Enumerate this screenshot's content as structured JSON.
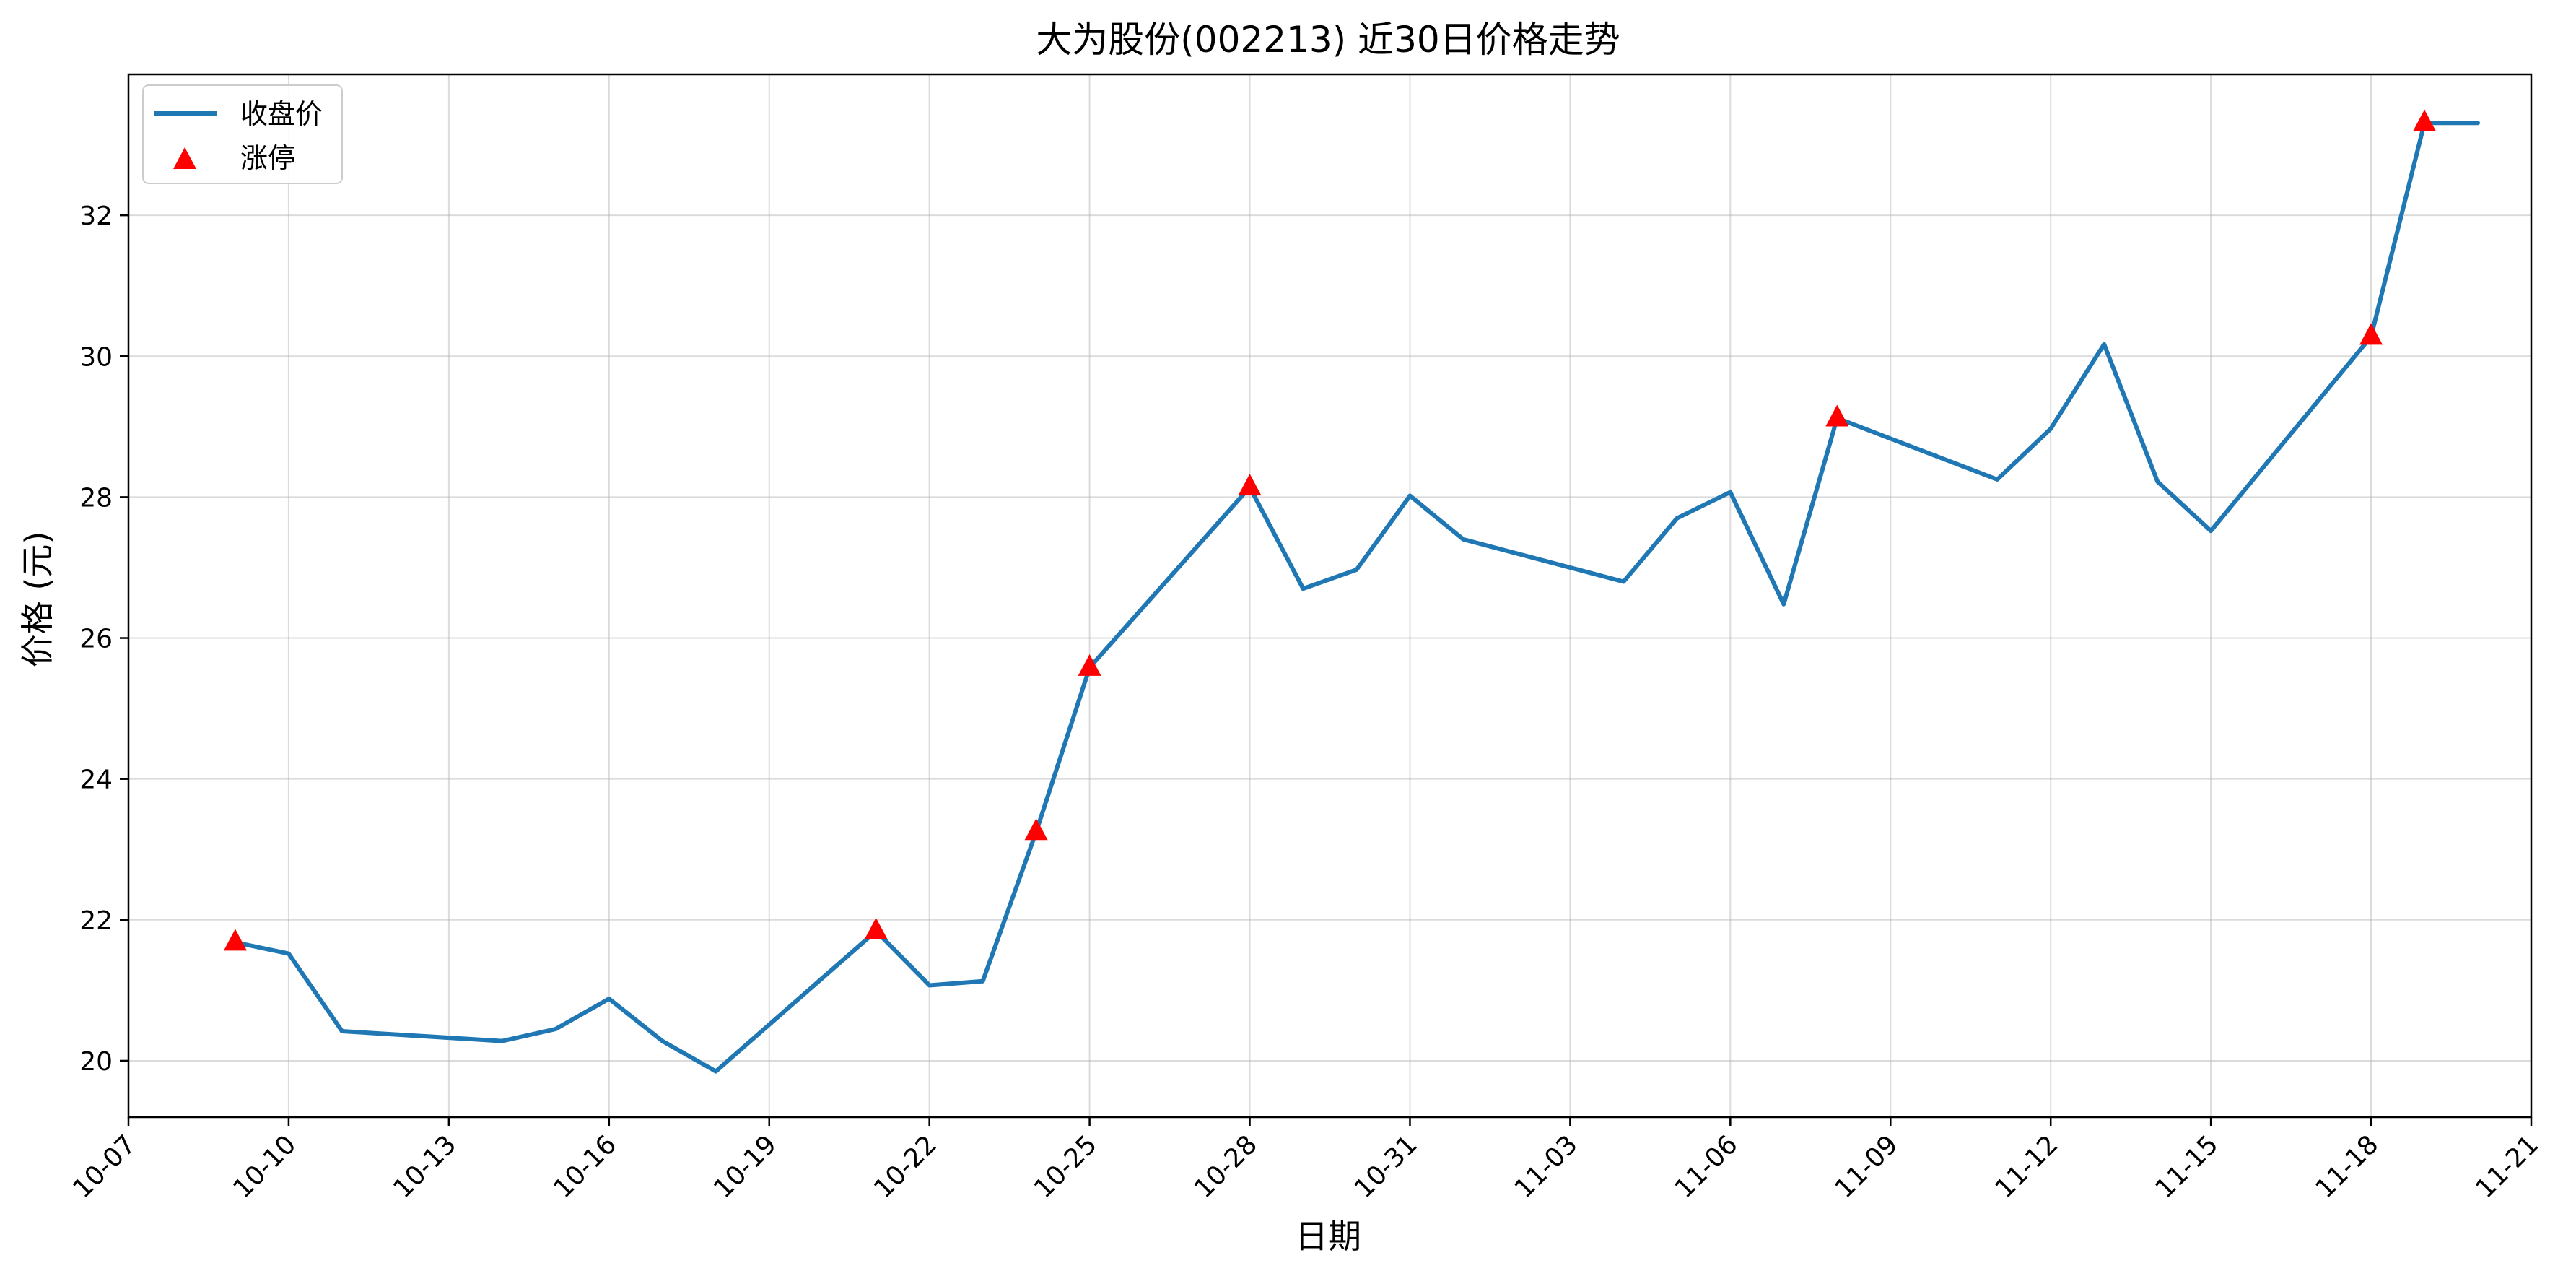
{
  "chart_data": {
    "type": "line",
    "title": "大为股份(002213) 近30日价格走势",
    "xlabel": "日期",
    "ylabel": "价格 (元)",
    "x_tick_labels": [
      "10-07",
      "10-10",
      "10-13",
      "10-16",
      "10-19",
      "10-22",
      "10-25",
      "10-28",
      "10-31",
      "11-03",
      "11-06",
      "11-09",
      "11-12",
      "11-15",
      "11-18",
      "11-21"
    ],
    "x_ticks": [
      "2024-10-07",
      "2024-10-10",
      "2024-10-13",
      "2024-10-16",
      "2024-10-19",
      "2024-10-22",
      "2024-10-25",
      "2024-10-28",
      "2024-10-31",
      "2024-11-03",
      "2024-11-06",
      "2024-11-09",
      "2024-11-12",
      "2024-11-15",
      "2024-11-18",
      "2024-11-21"
    ],
    "y_ticks": [
      20,
      22,
      24,
      26,
      28,
      30,
      32
    ],
    "xlim": [
      "2024-10-07",
      "2024-11-21"
    ],
    "ylim": [
      19.2,
      34.0
    ],
    "grid": true,
    "legend_position": "top-left",
    "series": [
      {
        "name": "收盘价",
        "kind": "line",
        "color": "#1f77b4",
        "x": [
          "2024-10-09",
          "2024-10-10",
          "2024-10-11",
          "2024-10-14",
          "2024-10-15",
          "2024-10-16",
          "2024-10-17",
          "2024-10-18",
          "2024-10-21",
          "2024-10-22",
          "2024-10-23",
          "2024-10-24",
          "2024-10-25",
          "2024-10-28",
          "2024-10-29",
          "2024-10-30",
          "2024-10-31",
          "2024-11-01",
          "2024-11-04",
          "2024-11-05",
          "2024-11-06",
          "2024-11-07",
          "2024-11-08",
          "2024-11-11",
          "2024-11-12",
          "2024-11-13",
          "2024-11-14",
          "2024-11-15",
          "2024-11-18",
          "2024-11-19",
          "2024-11-20"
        ],
        "y": [
          21.68,
          21.52,
          20.42,
          20.28,
          20.45,
          20.88,
          20.28,
          19.85,
          21.84,
          21.07,
          21.13,
          23.25,
          25.58,
          28.14,
          26.7,
          26.97,
          28.02,
          27.4,
          26.8,
          27.7,
          28.07,
          26.48,
          29.12,
          28.25,
          28.97,
          30.17,
          28.22,
          27.52,
          30.28,
          33.31,
          33.31
        ]
      },
      {
        "name": "涨停",
        "kind": "scatter",
        "marker": "triangle",
        "color": "#ff0000",
        "x": [
          "2024-10-09",
          "2024-10-21",
          "2024-10-24",
          "2024-10-25",
          "2024-10-28",
          "2024-11-08",
          "2024-11-18",
          "2024-11-19"
        ],
        "y": [
          21.68,
          21.84,
          23.25,
          25.58,
          28.14,
          29.12,
          30.28,
          33.31
        ]
      }
    ]
  }
}
